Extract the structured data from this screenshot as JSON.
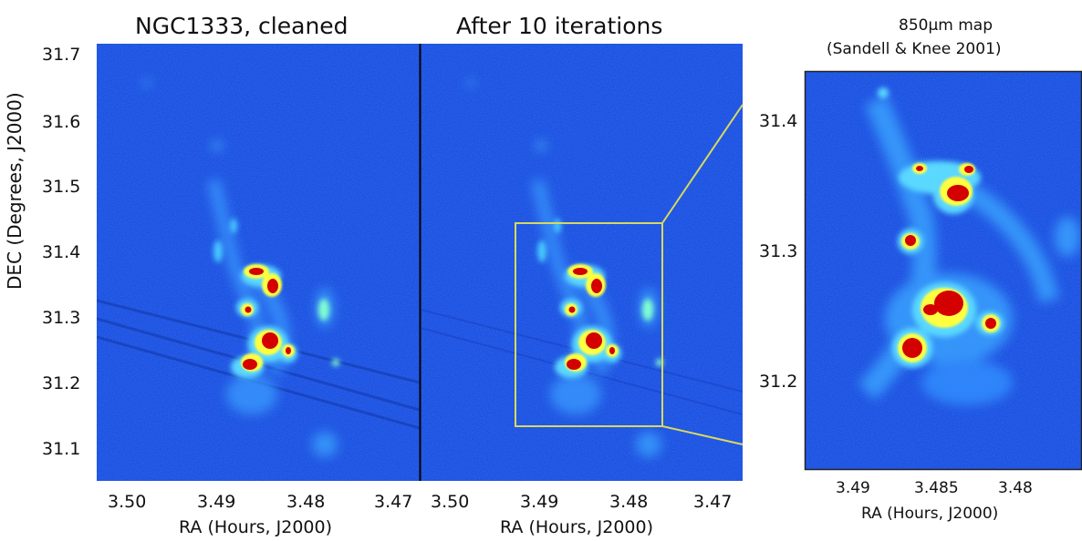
{
  "panels": [
    {
      "title": "NGC1333, cleaned",
      "xlabel": "RA (Hours, J2000)",
      "xticks": [
        "3.50",
        "3.49",
        "3.48",
        "3.47"
      ],
      "yticks": [
        "31.7",
        "31.6",
        "31.5",
        "31.4",
        "31.3",
        "31.2",
        "31.1"
      ],
      "ylabel": "DEC (Degrees, J2000)"
    },
    {
      "title": "After 10 iterations",
      "xlabel": "RA (Hours, J2000)",
      "xticks": [
        "3.50",
        "3.49",
        "3.48",
        "3.47"
      ]
    },
    {
      "title_line1": "850μm map",
      "title_line2": "(Sandell & Knee 2001)",
      "xlabel": "RA (Hours, J2000)",
      "xticks": [
        "3.49",
        "3.485",
        "3.48"
      ],
      "yticks": [
        "31.4",
        "31.3",
        "31.2"
      ]
    }
  ],
  "colors": {
    "background_map": "#1a4fe0",
    "low_emission": "#46b4ff",
    "mid_emission": "#ffff40",
    "high_emission": "#d40000",
    "zoom_box": "#d8d860"
  }
}
